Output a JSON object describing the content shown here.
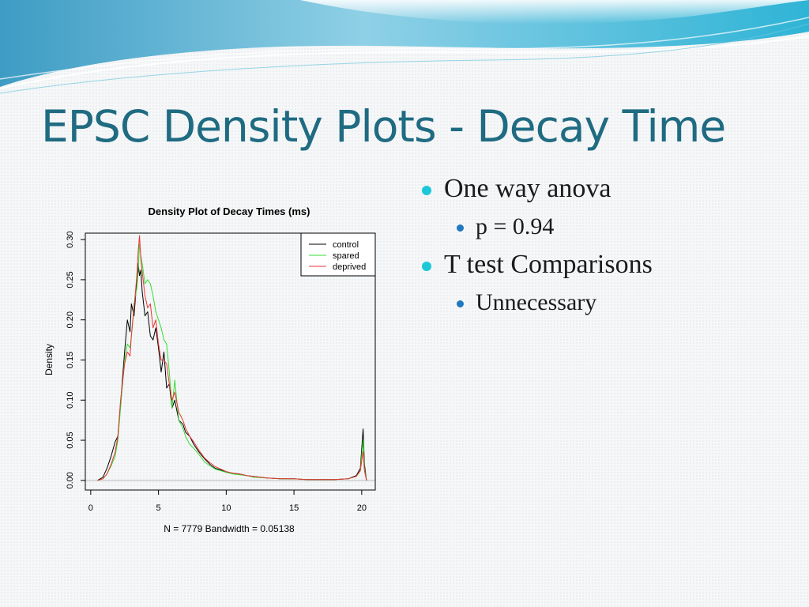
{
  "slide": {
    "title": "EPSC Density Plots - Decay Time",
    "bullets": [
      {
        "level": 1,
        "text": "One way anova"
      },
      {
        "level": 2,
        "text": "p = 0.94"
      },
      {
        "level": 1,
        "text": "T test Comparisons"
      },
      {
        "level": 2,
        "text": "Unnecessary"
      }
    ],
    "colors": {
      "title": "#1f6b82",
      "bullet_l1": "#1cc8d8",
      "bullet_l2": "#1f78c1"
    }
  },
  "chart_data": {
    "type": "line",
    "title": "Density Plot of Decay Times (ms)",
    "xlabel": "N = 7779   Bandwidth = 0.05138",
    "ylabel": "Density",
    "xlim": [
      -0.4,
      21
    ],
    "ylim": [
      -0.012,
      0.308
    ],
    "xticks": [
      0,
      5,
      10,
      15,
      20
    ],
    "yticks": [
      "0.00",
      "0.05",
      "0.10",
      "0.15",
      "0.20",
      "0.25",
      "0.30"
    ],
    "legend_position": "top-right",
    "series": [
      {
        "name": "control",
        "color": "#000000",
        "x": [
          0.5,
          0.9,
          1.2,
          1.5,
          1.8,
          2.0,
          2.2,
          2.5,
          2.7,
          2.9,
          3.0,
          3.2,
          3.4,
          3.5,
          3.6,
          3.7,
          3.8,
          4.0,
          4.2,
          4.4,
          4.6,
          4.8,
          5.0,
          5.2,
          5.4,
          5.6,
          5.8,
          6.0,
          6.2,
          6.5,
          6.8,
          7.0,
          7.3,
          7.6,
          8.0,
          8.4,
          8.8,
          9.2,
          9.6,
          10.0,
          10.5,
          11.0,
          11.5,
          12.0,
          13.0,
          14.0,
          15.0,
          16.0,
          17.0,
          18.0,
          19.0,
          19.6,
          19.9,
          20.1,
          20.2,
          20.35
        ],
        "y": [
          0.0,
          0.004,
          0.015,
          0.03,
          0.048,
          0.055,
          0.095,
          0.16,
          0.2,
          0.185,
          0.22,
          0.205,
          0.25,
          0.27,
          0.255,
          0.262,
          0.235,
          0.205,
          0.21,
          0.18,
          0.175,
          0.19,
          0.165,
          0.135,
          0.16,
          0.115,
          0.12,
          0.09,
          0.1,
          0.075,
          0.07,
          0.06,
          0.055,
          0.045,
          0.035,
          0.027,
          0.02,
          0.015,
          0.013,
          0.01,
          0.009,
          0.008,
          0.006,
          0.005,
          0.003,
          0.002,
          0.002,
          0.001,
          0.001,
          0.001,
          0.002,
          0.006,
          0.015,
          0.064,
          0.02,
          0.0
        ]
      },
      {
        "name": "spared",
        "color": "#33dd33",
        "x": [
          0.5,
          0.9,
          1.2,
          1.5,
          1.8,
          2.0,
          2.2,
          2.5,
          2.7,
          2.9,
          3.0,
          3.2,
          3.4,
          3.5,
          3.6,
          3.7,
          3.8,
          4.0,
          4.2,
          4.4,
          4.6,
          4.8,
          5.0,
          5.2,
          5.4,
          5.6,
          5.8,
          6.0,
          6.2,
          6.5,
          6.8,
          7.0,
          7.3,
          7.6,
          8.0,
          8.4,
          8.8,
          9.2,
          9.6,
          10.0,
          10.5,
          11.0,
          11.5,
          12.0,
          13.0,
          14.0,
          15.0,
          16.0,
          17.0,
          18.0,
          19.0,
          19.6,
          19.9,
          20.1,
          20.2,
          20.35
        ],
        "y": [
          0.0,
          0.002,
          0.008,
          0.018,
          0.03,
          0.05,
          0.09,
          0.15,
          0.17,
          0.165,
          0.18,
          0.22,
          0.24,
          0.26,
          0.295,
          0.28,
          0.27,
          0.245,
          0.25,
          0.245,
          0.23,
          0.21,
          0.2,
          0.19,
          0.175,
          0.17,
          0.135,
          0.09,
          0.125,
          0.075,
          0.065,
          0.055,
          0.045,
          0.04,
          0.032,
          0.023,
          0.018,
          0.014,
          0.012,
          0.01,
          0.008,
          0.007,
          0.006,
          0.004,
          0.003,
          0.002,
          0.002,
          0.001,
          0.001,
          0.001,
          0.002,
          0.005,
          0.012,
          0.05,
          0.015,
          0.0
        ]
      },
      {
        "name": "deprived",
        "color": "#ee3333",
        "x": [
          0.5,
          0.9,
          1.2,
          1.5,
          1.8,
          2.0,
          2.2,
          2.5,
          2.7,
          2.9,
          3.0,
          3.2,
          3.4,
          3.5,
          3.6,
          3.7,
          3.8,
          4.0,
          4.2,
          4.4,
          4.6,
          4.8,
          5.0,
          5.2,
          5.4,
          5.6,
          5.8,
          6.0,
          6.2,
          6.5,
          6.8,
          7.0,
          7.3,
          7.6,
          8.0,
          8.4,
          8.8,
          9.2,
          9.6,
          10.0,
          10.5,
          11.0,
          11.5,
          12.0,
          13.0,
          14.0,
          15.0,
          16.0,
          17.0,
          18.0,
          19.0,
          19.6,
          19.9,
          20.1,
          20.2,
          20.35
        ],
        "y": [
          0.0,
          0.002,
          0.008,
          0.02,
          0.035,
          0.055,
          0.1,
          0.145,
          0.16,
          0.155,
          0.18,
          0.215,
          0.255,
          0.285,
          0.305,
          0.275,
          0.26,
          0.23,
          0.215,
          0.22,
          0.19,
          0.2,
          0.17,
          0.15,
          0.15,
          0.145,
          0.12,
          0.1,
          0.11,
          0.085,
          0.075,
          0.065,
          0.055,
          0.048,
          0.037,
          0.028,
          0.022,
          0.017,
          0.014,
          0.011,
          0.009,
          0.008,
          0.006,
          0.005,
          0.003,
          0.002,
          0.002,
          0.001,
          0.001,
          0.001,
          0.002,
          0.005,
          0.012,
          0.036,
          0.012,
          0.0
        ]
      }
    ]
  }
}
